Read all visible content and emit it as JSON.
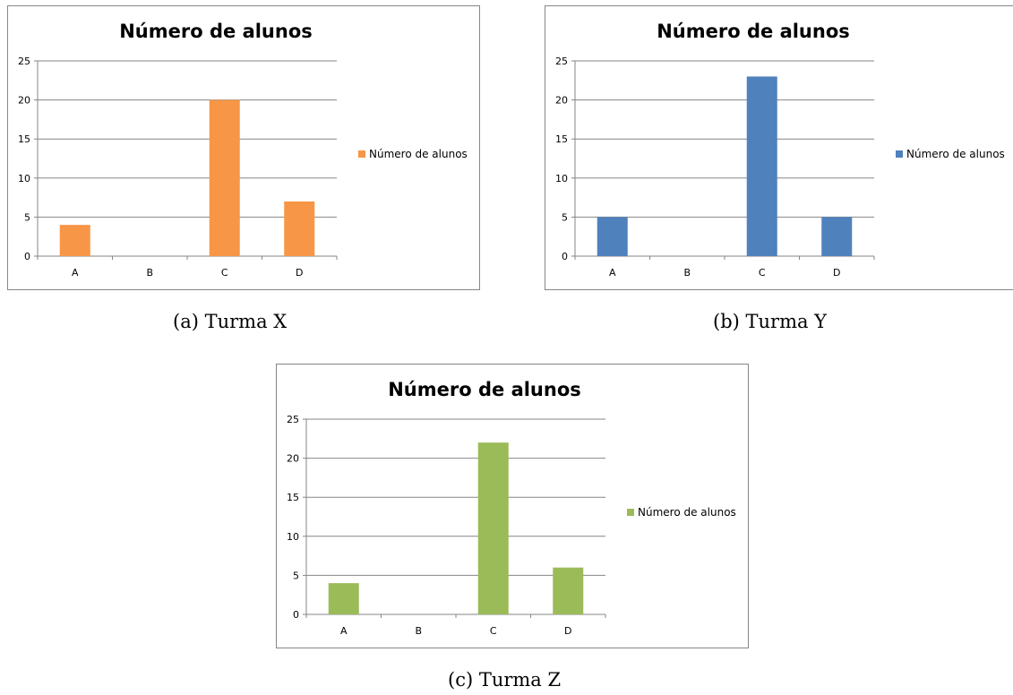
{
  "chart_data": [
    {
      "type": "bar",
      "title": "Número de alunos",
      "categories": [
        "A",
        "B",
        "C",
        "D"
      ],
      "series": [
        {
          "name": "Número de alunos",
          "values": [
            4,
            0,
            20,
            7
          ],
          "color": "#F79646"
        }
      ],
      "xlabel": "",
      "ylabel": "",
      "ylim": [
        0,
        25
      ],
      "yticks": [
        "0",
        "5",
        "10",
        "15",
        "20",
        "25"
      ],
      "grid": true,
      "legend": "right",
      "caption": "(a) Turma X"
    },
    {
      "type": "bar",
      "title": "Número de alunos",
      "categories": [
        "A",
        "B",
        "C",
        "D"
      ],
      "series": [
        {
          "name": "Número de alunos",
          "values": [
            5,
            0,
            23,
            5
          ],
          "color": "#4F81BD"
        }
      ],
      "xlabel": "",
      "ylabel": "",
      "ylim": [
        0,
        25
      ],
      "yticks": [
        "0",
        "5",
        "10",
        "15",
        "20",
        "25"
      ],
      "grid": true,
      "legend": "right",
      "caption": "(b) Turma Y"
    },
    {
      "type": "bar",
      "title": "Número de alunos",
      "categories": [
        "A",
        "B",
        "C",
        "D"
      ],
      "series": [
        {
          "name": "Número de alunos",
          "values": [
            4,
            0,
            22,
            6
          ],
          "color": "#9BBB59"
        }
      ],
      "xlabel": "",
      "ylabel": "",
      "ylim": [
        0,
        25
      ],
      "yticks": [
        "0",
        "5",
        "10",
        "15",
        "20",
        "25"
      ],
      "grid": true,
      "legend": "right",
      "caption": "(c) Turma Z"
    }
  ]
}
